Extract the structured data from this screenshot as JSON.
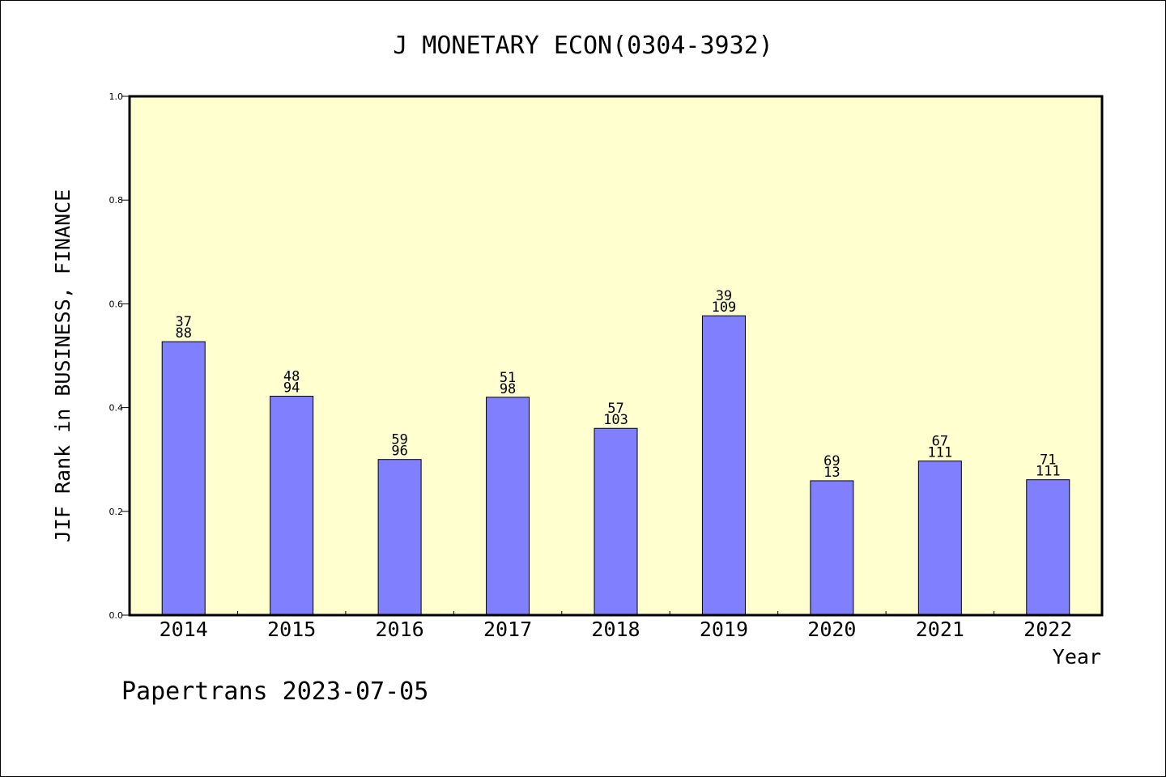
{
  "chart_data": {
    "type": "bar",
    "title": "J MONETARY ECON(0304-3932)",
    "xlabel": "Year",
    "ylabel": "JIF Rank in BUSINESS, FINANCE",
    "footer": "Papertrans 2023-07-05",
    "ylim": [
      0,
      1.0
    ],
    "yticks": [
      "0.0",
      "0.2",
      "0.4",
      "0.6",
      "0.8",
      "1.0"
    ],
    "grid": false,
    "categories": [
      "2014",
      "2015",
      "2016",
      "2017",
      "2018",
      "2019",
      "2020",
      "2021",
      "2022"
    ],
    "values": [
      0.527,
      0.422,
      0.3,
      0.42,
      0.36,
      0.577,
      0.259,
      0.297,
      0.261
    ],
    "labels": [
      {
        "top": "37",
        "bottom": "88"
      },
      {
        "top": "48",
        "bottom": "94"
      },
      {
        "top": "59",
        "bottom": "96"
      },
      {
        "top": "51",
        "bottom": "98"
      },
      {
        "top": "57",
        "bottom": "103"
      },
      {
        "top": "39",
        "bottom": "109"
      },
      {
        "top": "69",
        "bottom": "13"
      },
      {
        "top": "67",
        "bottom": "111"
      },
      {
        "top": "71",
        "bottom": "111"
      }
    ],
    "colors": {
      "bar": "#8080ff",
      "plot_bg": "#ffffd0",
      "axis": "#000000"
    }
  }
}
